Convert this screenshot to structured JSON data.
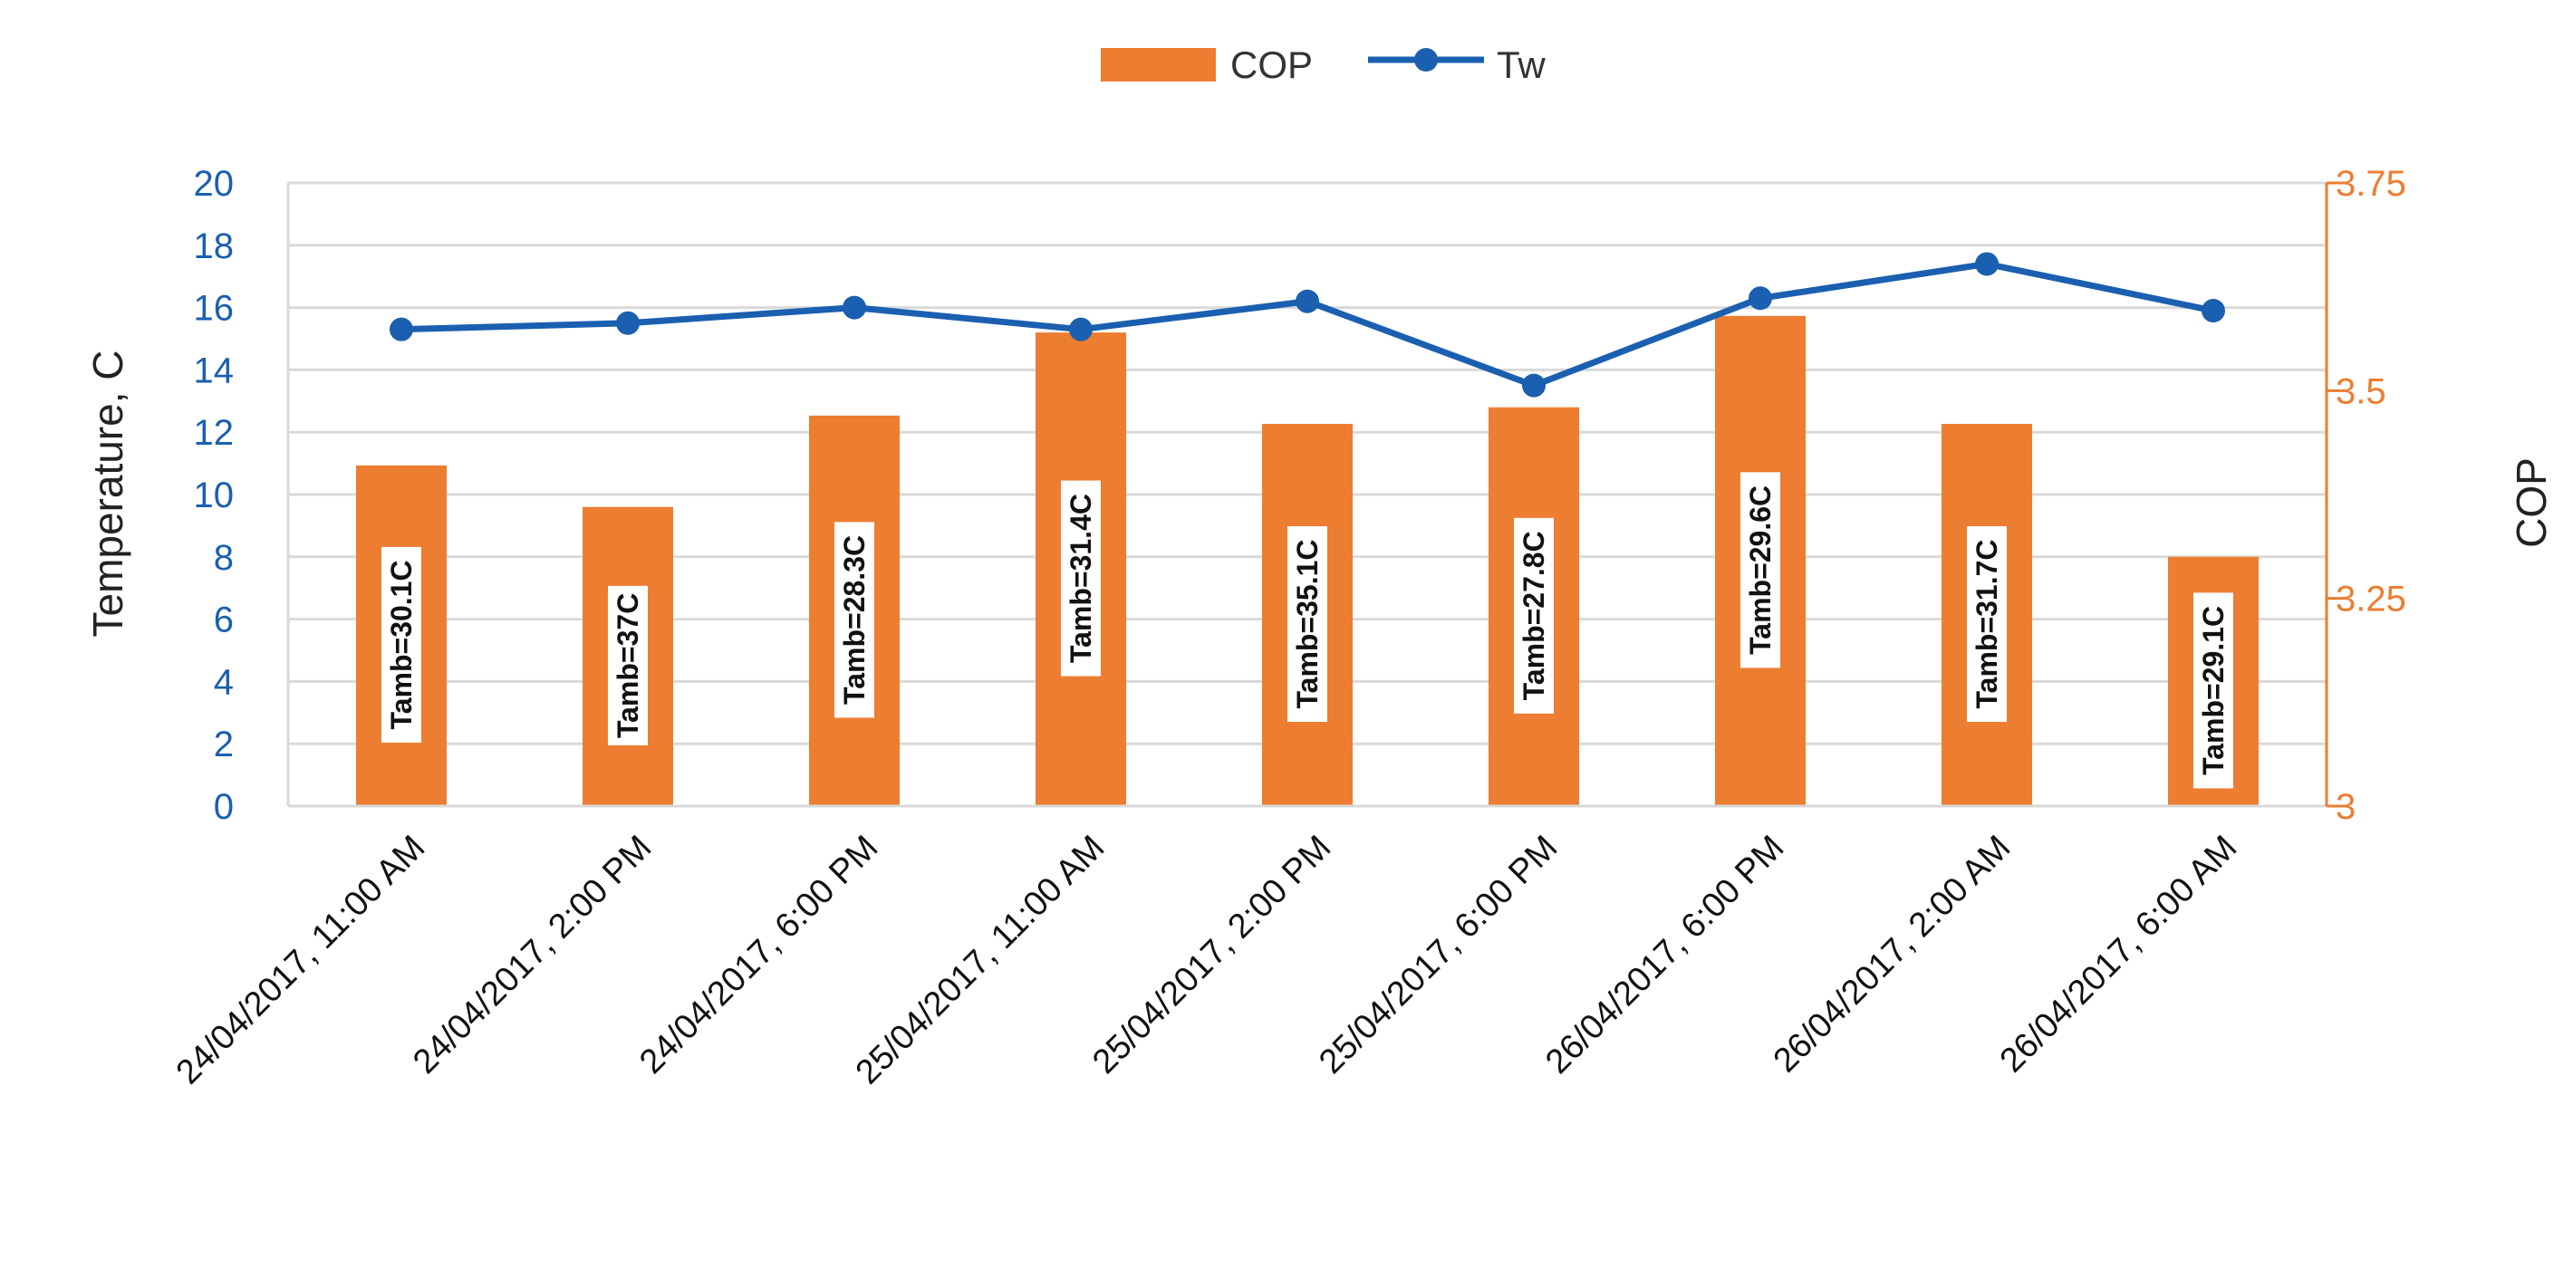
{
  "chart_data": {
    "type": "bar+line",
    "categories": [
      "24/04/2017, 11:00 AM",
      "24/04/2017, 2:00 PM",
      "24/04/2017, 6:00 PM",
      "25/04/2017, 11:00 AM",
      "25/04/2017, 2:00 PM",
      "25/04/2017, 6:00 PM",
      "26/04/2017, 6:00 PM",
      "26/04/2017, 2:00 AM",
      "26/04/2017, 6:00 AM"
    ],
    "series": [
      {
        "name": "COP",
        "type": "bar",
        "axis": "right",
        "color": "#ed7d31",
        "values": [
          3.41,
          3.36,
          3.47,
          3.57,
          3.46,
          3.48,
          3.59,
          3.46,
          3.3
        ]
      },
      {
        "name": "Tw",
        "type": "line",
        "axis": "left",
        "color": "#1a5fb0",
        "values": [
          15.3,
          15.5,
          16.0,
          15.3,
          16.2,
          13.5,
          16.3,
          17.4,
          15.9
        ]
      }
    ],
    "annotations": [
      "Tamb=30.1C",
      "Tamb=37C",
      "Tamb=28.3C",
      "Tamb=31.4C",
      "Tamb=35.1C",
      "Tamb=27.8C",
      "Tamb=29.6C",
      "Tamb=31.7C",
      "Tamb=29.1C"
    ],
    "ylabel_left": "Temperature, C",
    "ylabel_right": "COP",
    "ylim_left": [
      0,
      20
    ],
    "ylim_right": [
      3,
      3.75
    ],
    "yticks_left": [
      "0",
      "2",
      "4",
      "6",
      "8",
      "10",
      "12",
      "14",
      "16",
      "18",
      "20"
    ],
    "yticks_right": [
      "3",
      "3.25",
      "3.5",
      "3.75"
    ],
    "yticks_right_values": [
      3,
      3.25,
      3.5,
      3.75
    ],
    "grid": true,
    "legend_position": "top-center",
    "legend": [
      "COP",
      "Tw"
    ],
    "xlabel": ""
  }
}
